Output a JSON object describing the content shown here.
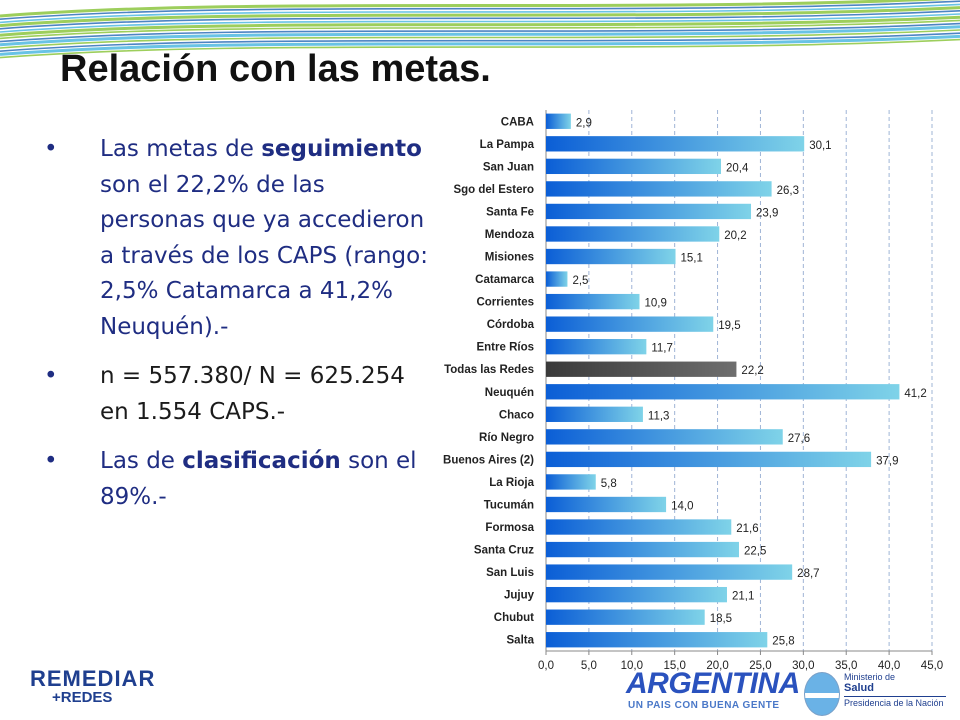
{
  "slide": {
    "title": "Relación con las metas.",
    "bullets": [
      {
        "pre": "Las metas de ",
        "strong": "seguimiento",
        "post": " son el 22,2% de las personas que ya accedieron a través de los CAPS (rango: 2,5% Catamarca a 41,2% Neuquén).-"
      },
      {
        "text": "n = 557.380/ N = 625.254 en 1.554 CAPS.-"
      },
      {
        "pre": "Las de ",
        "strong": "clasificación",
        "post": " son el 89%.-"
      }
    ]
  },
  "logos": {
    "remediar": "REMEDIAR",
    "redes": "+REDES",
    "argentina": "ARGENTINA",
    "argentina_sub": "UN PAIS CON BUENA GENTE",
    "ministry_line1": "Ministerio de",
    "ministry_line2": "Salud",
    "ministry_line3": "Presidencia de la Nación"
  },
  "colors": {
    "bar_start": "#0b5ed6",
    "bar_end": "#7fd3e8",
    "highlight_bar": "#555555",
    "bullet_text": "#1f2d82",
    "gridline": "#9fb4d6",
    "stripe_green": "#8cc63f",
    "stripe_blue": "#2e6fb8",
    "stripe_cyan": "#4fb8e0"
  },
  "chart_data": {
    "type": "bar",
    "orientation": "horizontal",
    "categories": [
      "CABA",
      "La Pampa",
      "San Juan",
      "Sgo del Estero",
      "Santa Fe",
      "Mendoza",
      "Misiones",
      "Catamarca",
      "Corrientes",
      "Córdoba",
      "Entre Ríos",
      "Todas las Redes",
      "Neuquén",
      "Chaco",
      "Río Negro",
      "Buenos Aires (2)",
      "La Rioja",
      "Tucumán",
      "Formosa",
      "Santa Cruz",
      "San Luis",
      "Jujuy",
      "Chubut",
      "Salta"
    ],
    "values": [
      2.9,
      30.1,
      20.4,
      26.3,
      23.9,
      20.2,
      15.1,
      2.5,
      10.9,
      19.5,
      11.7,
      22.2,
      41.2,
      11.3,
      27.6,
      37.9,
      5.8,
      14.0,
      21.6,
      22.5,
      28.7,
      21.1,
      18.5,
      25.8
    ],
    "value_labels": [
      "2,9",
      "30,1",
      "20,4",
      "26,3",
      "23,9",
      "20,2",
      "15,1",
      "2,5",
      "10,9",
      "19,5",
      "11,7",
      "22,2",
      "41,2",
      "11,3",
      "27,6",
      "37,9",
      "5,8",
      "14,0",
      "21,6",
      "22,5",
      "28,7",
      "21,1",
      "18,5",
      "25,8"
    ],
    "highlight_category": "Todas las Redes",
    "xlim": [
      0,
      45
    ],
    "xticks": [
      0,
      5,
      10,
      15,
      20,
      25,
      30,
      35,
      40,
      45
    ],
    "xtick_labels": [
      "0,0",
      "5,0",
      "10,0",
      "15,0",
      "20,0",
      "25,0",
      "30,0",
      "35,0",
      "40,0",
      "45,0"
    ],
    "grid": true,
    "title": "",
    "xlabel": "",
    "ylabel": ""
  }
}
